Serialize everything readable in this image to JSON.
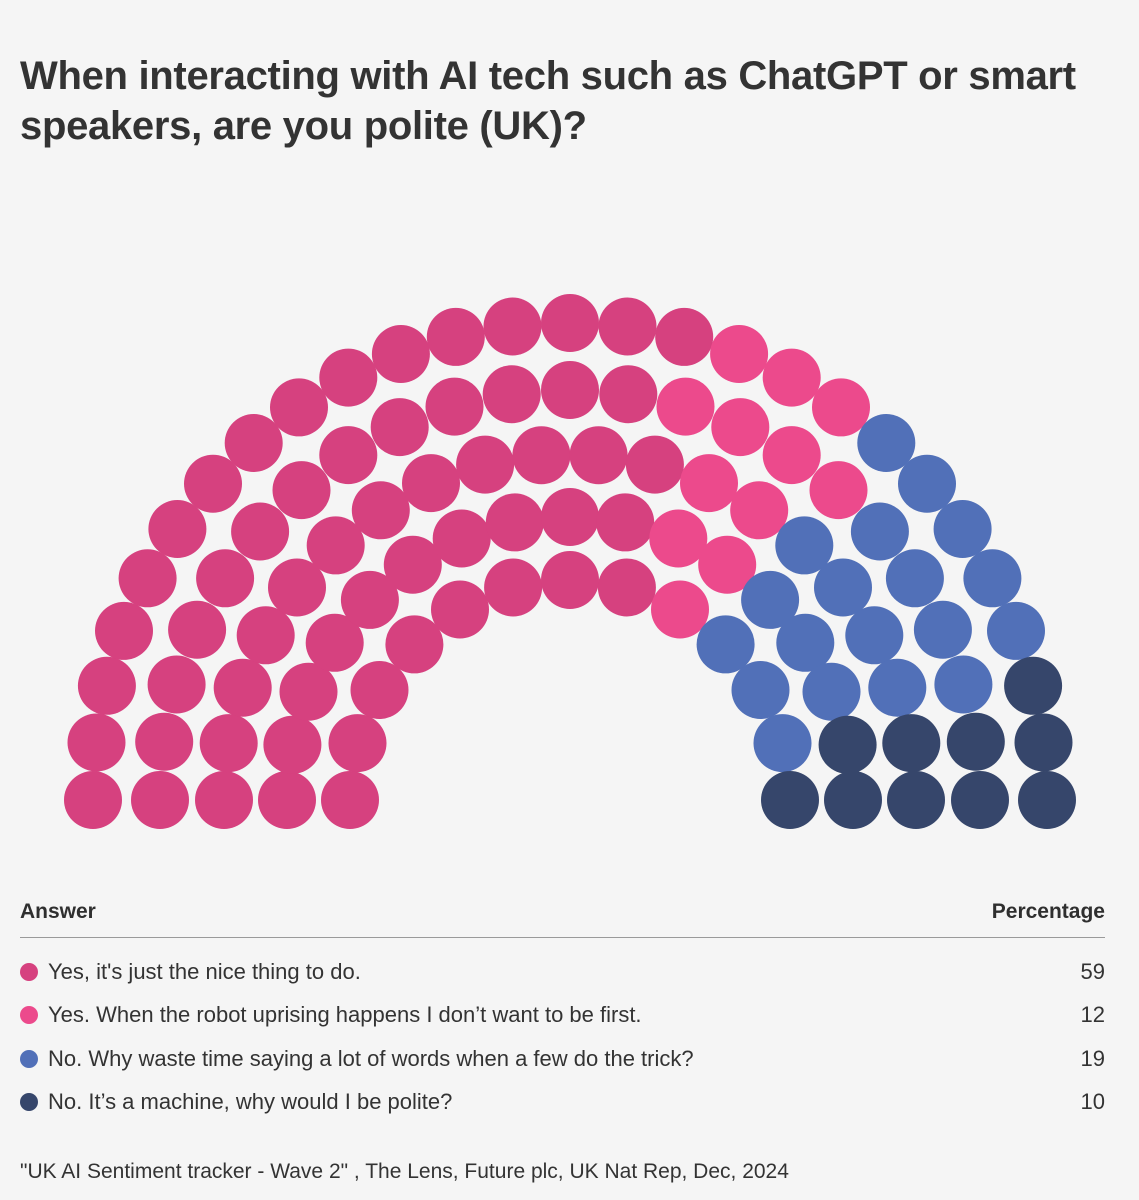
{
  "title": "When interacting with AI tech such as ChatGPT or smart speakers, are you polite (UK)?",
  "legend": {
    "answer_header": "Answer",
    "percentage_header": "Percentage"
  },
  "source": "\"UK AI Sentiment tracker - Wave 2\" , The Lens, Future plc, UK Nat Rep, Dec, 2024",
  "chart_data": {
    "type": "parliament",
    "title": "When interacting with AI tech such as ChatGPT or smart speakers, are you polite (UK)?",
    "unit": "%",
    "total_seats": 100,
    "series": [
      {
        "name": "Yes, it's just the nice thing to do.",
        "value": 59,
        "color": "#d6417f"
      },
      {
        "name": "Yes. When the robot uprising happens I don’t want to be first.",
        "value": 12,
        "color": "#ec4a8c"
      },
      {
        "name": "No. Why waste time saying a lot of words when a few do the trick?",
        "value": 19,
        "color": "#5170b8"
      },
      {
        "name": "No. It’s a machine, why would I be polite?",
        "value": 10,
        "color": "#36466b"
      }
    ]
  }
}
